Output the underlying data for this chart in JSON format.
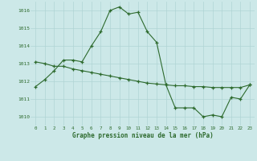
{
  "line1_x": [
    0,
    1,
    2,
    3,
    4,
    5,
    6,
    7,
    8,
    9,
    10,
    11,
    12,
    13,
    14,
    15,
    16,
    17,
    18,
    19,
    20,
    21,
    22,
    23
  ],
  "line1_y": [
    1011.7,
    1012.1,
    1012.6,
    1013.2,
    1013.2,
    1013.1,
    1014.0,
    1014.8,
    1016.0,
    1016.2,
    1015.8,
    1015.9,
    1014.8,
    1014.2,
    1011.8,
    1010.5,
    1010.5,
    1010.5,
    1010.0,
    1010.1,
    1010.0,
    1011.1,
    1011.0,
    1011.8
  ],
  "line2_x": [
    0,
    1,
    2,
    3,
    4,
    5,
    6,
    7,
    8,
    9,
    10,
    11,
    12,
    13,
    14,
    15,
    16,
    17,
    18,
    19,
    20,
    21,
    22,
    23
  ],
  "line2_y": [
    1013.1,
    1013.0,
    1012.85,
    1012.85,
    1012.7,
    1012.6,
    1012.5,
    1012.4,
    1012.3,
    1012.2,
    1012.1,
    1012.0,
    1011.9,
    1011.85,
    1011.8,
    1011.75,
    1011.75,
    1011.7,
    1011.7,
    1011.65,
    1011.65,
    1011.65,
    1011.65,
    1011.8
  ],
  "line_color": "#2d6a2d",
  "bg_color": "#cce8e8",
  "grid_color": "#b0d4d4",
  "xlabel": "Graphe pression niveau de la mer (hPa)",
  "ylim": [
    1009.5,
    1016.5
  ],
  "xlim": [
    -0.5,
    23.5
  ],
  "yticks": [
    1010,
    1011,
    1012,
    1013,
    1014,
    1015,
    1016
  ],
  "xticks": [
    0,
    1,
    2,
    3,
    4,
    5,
    6,
    7,
    8,
    9,
    10,
    11,
    12,
    13,
    14,
    15,
    16,
    17,
    18,
    19,
    20,
    21,
    22,
    23
  ],
  "xtick_labels": [
    "0",
    "1",
    "2",
    "3",
    "4",
    "5",
    "6",
    "7",
    "8",
    "9",
    "10",
    "11",
    "12",
    "13",
    "14",
    "15",
    "16",
    "17",
    "18",
    "19",
    "20",
    "21",
    "22",
    "23"
  ]
}
